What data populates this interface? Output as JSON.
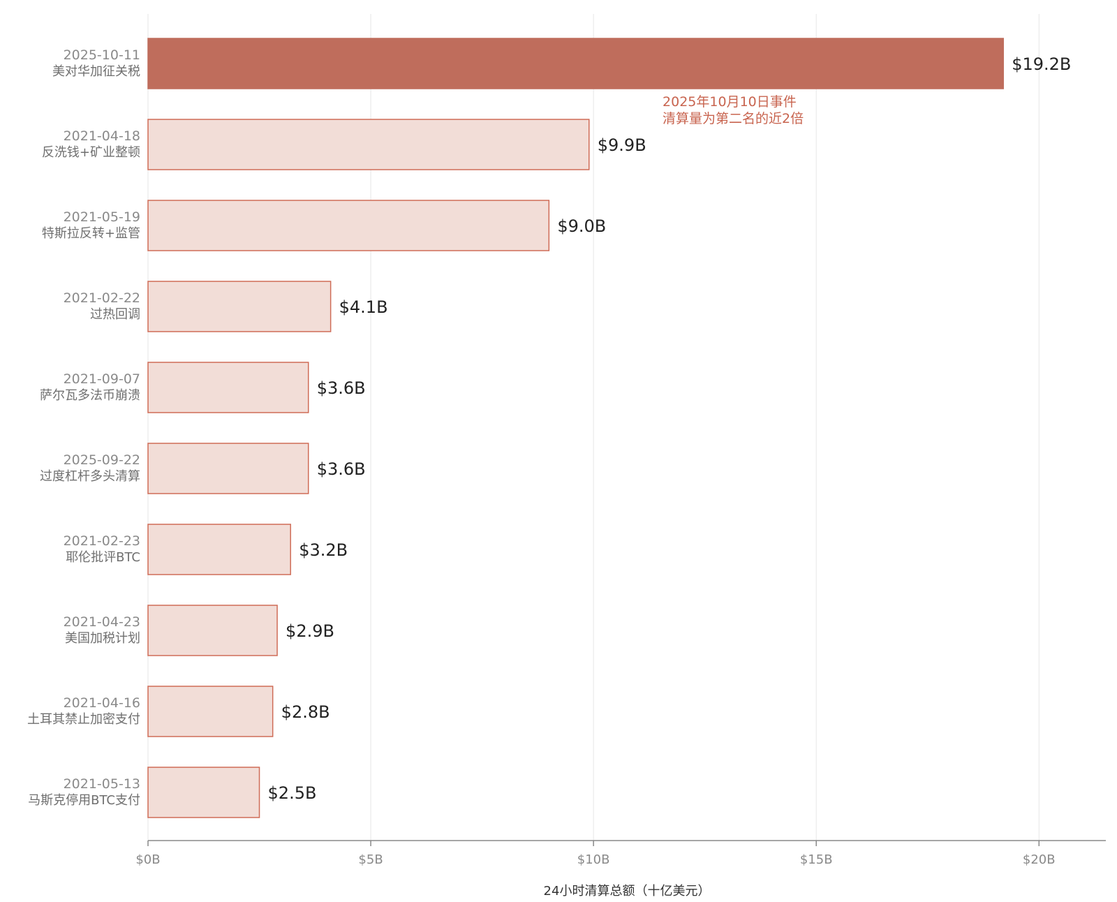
{
  "chart_data": {
    "type": "bar",
    "orientation": "horizontal",
    "categories": [
      {
        "date": "2025-10-11",
        "event": "美对华加征关税"
      },
      {
        "date": "2021-04-18",
        "event": "反洗钱+矿业整顿"
      },
      {
        "date": "2021-05-19",
        "event": "特斯拉反转+监管"
      },
      {
        "date": "2021-02-22",
        "event": "过热回调"
      },
      {
        "date": "2021-09-07",
        "event": "萨尔瓦多法币崩溃"
      },
      {
        "date": "2025-09-22",
        "event": "过度杠杆多头清算"
      },
      {
        "date": "2021-02-23",
        "event": "耶伦批评BTC"
      },
      {
        "date": "2021-04-23",
        "event": "美国加税计划"
      },
      {
        "date": "2021-04-16",
        "event": "土耳其禁止加密支付"
      },
      {
        "date": "2021-05-13",
        "event": "马斯克停用BTC支付"
      }
    ],
    "values": [
      19.2,
      9.9,
      9.0,
      4.1,
      3.6,
      3.6,
      3.2,
      2.9,
      2.8,
      2.5
    ],
    "value_labels": [
      "$19.2B",
      "$9.9B",
      "$9.0B",
      "$4.1B",
      "$3.6B",
      "$3.6B",
      "$3.2B",
      "$2.9B",
      "$2.8B",
      "$2.5B"
    ],
    "highlight_index": 0,
    "xlabel": "24小时清算总额（十亿美元）",
    "ylabel": "",
    "xlim": [
      0,
      21.5
    ],
    "xticks": [
      0,
      5,
      10,
      15,
      20
    ],
    "xtick_labels": [
      "$0B",
      "$5B",
      "$10B",
      "$15B",
      "$20B"
    ],
    "grid": "vertical",
    "annotation": {
      "lines": [
        "2025年10月10日事件",
        "清算量为第二名的近2倍"
      ]
    },
    "colors": {
      "highlight_fill": "#bf6d5c",
      "highlight_stroke": "#bf6d5c",
      "bar_fill": "#f2ddd7",
      "bar_stroke": "#cf6c57",
      "annotation": "#c8644f",
      "grid": "#e6e6e6",
      "axis": "#888888"
    }
  }
}
